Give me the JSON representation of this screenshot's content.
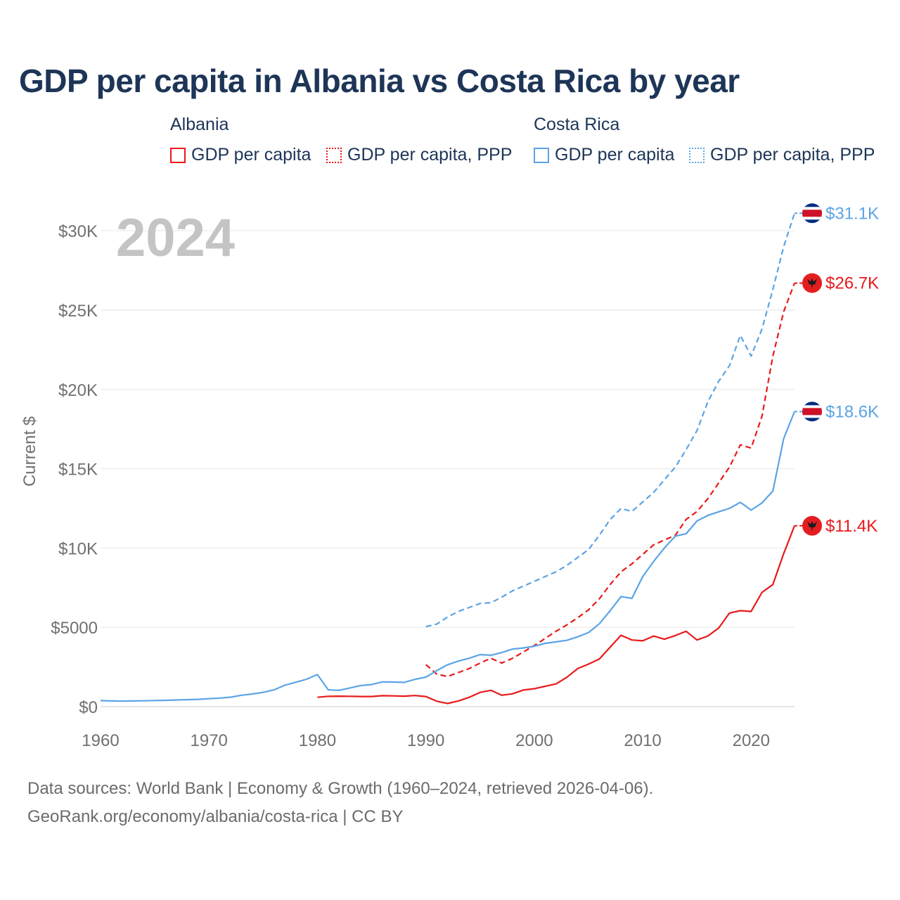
{
  "title": "GDP per capita in Albania vs Costa Rica by year",
  "year_label": "2024",
  "legend": {
    "groups": [
      {
        "name": "Albania",
        "items": [
          "GDP per capita",
          "GDP per capita, PPP"
        ],
        "color": "#e8191b"
      },
      {
        "name": "Costa Rica",
        "items": [
          "GDP per capita",
          "GDP per capita, PPP"
        ],
        "color": "#5ba4e5"
      }
    ]
  },
  "footer": {
    "line1": "Data sources: World Bank | Economy & Growth (1960–2024, retrieved 2026-04-06).",
    "line2": "GeoRank.org/economy/albania/costa-rica | CC BY"
  },
  "chart_data": {
    "type": "line",
    "title": "GDP per capita in Albania vs Costa Rica by year",
    "xlabel": "",
    "ylabel": "Current $",
    "xlim": [
      1960,
      2024
    ],
    "ylim": [
      0,
      32000
    ],
    "xticks": [
      1960,
      1970,
      1980,
      1990,
      2000,
      2010,
      2020
    ],
    "xtick_labels": [
      "1960",
      "1970",
      "1980",
      "1990",
      "2000",
      "2010",
      "2020"
    ],
    "yticks": [
      0,
      5000,
      10000,
      15000,
      20000,
      25000,
      30000
    ],
    "ytick_labels": [
      "$0",
      "$5000",
      "$10K",
      "$15K",
      "$20K",
      "$25K",
      "$30K"
    ],
    "grid": true,
    "series": [
      {
        "name": "Costa Rica — GDP per capita, PPP",
        "country": "Costa Rica",
        "color": "#5ba4e5",
        "dash": "dashed",
        "end_label": "$31.1K",
        "x": [
          1990,
          1991,
          1992,
          1993,
          1994,
          1995,
          1996,
          1997,
          1998,
          1999,
          2000,
          2001,
          2002,
          2003,
          2004,
          2005,
          2006,
          2007,
          2008,
          2009,
          2010,
          2011,
          2012,
          2013,
          2014,
          2015,
          2016,
          2017,
          2018,
          2019,
          2020,
          2021,
          2022,
          2023,
          2024
        ],
        "values": [
          5050,
          5200,
          5650,
          6000,
          6250,
          6500,
          6550,
          6900,
          7300,
          7600,
          7900,
          8200,
          8500,
          8900,
          9400,
          9900,
          10800,
          11800,
          12500,
          12300,
          12900,
          13500,
          14300,
          15100,
          16200,
          17400,
          19200,
          20500,
          21500,
          23400,
          22100,
          23800,
          26300,
          29000,
          31100
        ]
      },
      {
        "name": "Albania — GDP per capita, PPP",
        "country": "Albania",
        "color": "#e8191b",
        "dash": "dashed",
        "end_label": "$26.7K",
        "x": [
          1990,
          1991,
          1992,
          1993,
          1994,
          1995,
          1996,
          1997,
          1998,
          1999,
          2000,
          2001,
          2002,
          2003,
          2004,
          2005,
          2006,
          2007,
          2008,
          2009,
          2010,
          2011,
          2012,
          2013,
          2014,
          2015,
          2016,
          2017,
          2018,
          2019,
          2020,
          2021,
          2022,
          2023,
          2024
        ],
        "values": [
          2650,
          2050,
          1900,
          2150,
          2400,
          2750,
          3050,
          2750,
          3050,
          3450,
          3850,
          4300,
          4750,
          5150,
          5600,
          6100,
          6800,
          7700,
          8500,
          9000,
          9600,
          10200,
          10500,
          10800,
          11800,
          12300,
          13100,
          14100,
          15100,
          16500,
          16300,
          18300,
          22100,
          24900,
          26700
        ]
      },
      {
        "name": "Costa Rica — GDP per capita",
        "country": "Costa Rica",
        "color": "#5ba4e5",
        "dash": "solid",
        "end_label": "$18.6K",
        "x": [
          1960,
          1961,
          1962,
          1963,
          1964,
          1965,
          1966,
          1967,
          1968,
          1969,
          1970,
          1971,
          1972,
          1973,
          1974,
          1975,
          1976,
          1977,
          1978,
          1979,
          1980,
          1981,
          1982,
          1983,
          1984,
          1985,
          1986,
          1987,
          1988,
          1989,
          1990,
          1991,
          1992,
          1993,
          1994,
          1995,
          1996,
          1997,
          1998,
          1999,
          2000,
          2001,
          2002,
          2003,
          2004,
          2005,
          2006,
          2007,
          2008,
          2009,
          2010,
          2011,
          2012,
          2013,
          2014,
          2015,
          2016,
          2017,
          2018,
          2019,
          2020,
          2021,
          2022,
          2023,
          2024
        ],
        "values": [
          380,
          360,
          350,
          360,
          370,
          385,
          400,
          420,
          440,
          460,
          500,
          540,
          600,
          720,
          800,
          900,
          1060,
          1350,
          1540,
          1730,
          2020,
          1060,
          1030,
          1180,
          1330,
          1390,
          1560,
          1550,
          1530,
          1720,
          1860,
          2270,
          2640,
          2870,
          3050,
          3280,
          3240,
          3410,
          3630,
          3700,
          3810,
          3990,
          4080,
          4180,
          4400,
          4670,
          5220,
          6050,
          6940,
          6820,
          8200,
          9150,
          10000,
          10750,
          10900,
          11700,
          12050,
          12280,
          12500,
          12880,
          12390,
          12840,
          13600,
          16900,
          18600
        ]
      },
      {
        "name": "Albania — GDP per capita",
        "country": "Albania",
        "color": "#e8191b",
        "dash": "solid",
        "end_label": "$11.4K",
        "x": [
          1980,
          1981,
          1982,
          1983,
          1984,
          1985,
          1986,
          1987,
          1988,
          1989,
          1990,
          1991,
          1992,
          1993,
          1994,
          1995,
          1996,
          1997,
          1998,
          1999,
          2000,
          2001,
          2002,
          2003,
          2004,
          2005,
          2006,
          2007,
          2008,
          2009,
          2010,
          2011,
          2012,
          2013,
          2014,
          2015,
          2016,
          2017,
          2018,
          2019,
          2020,
          2021,
          2022,
          2023,
          2024
        ],
        "values": [
          590,
          650,
          660,
          650,
          640,
          640,
          690,
          680,
          660,
          700,
          640,
          340,
          200,
          360,
          590,
          900,
          1030,
          720,
          810,
          1050,
          1130,
          1280,
          1430,
          1850,
          2400,
          2680,
          3000,
          3750,
          4500,
          4200,
          4150,
          4450,
          4250,
          4480,
          4750,
          4200,
          4450,
          4950,
          5900,
          6050,
          6000,
          7200,
          7700,
          9650,
          11400
        ]
      }
    ]
  }
}
